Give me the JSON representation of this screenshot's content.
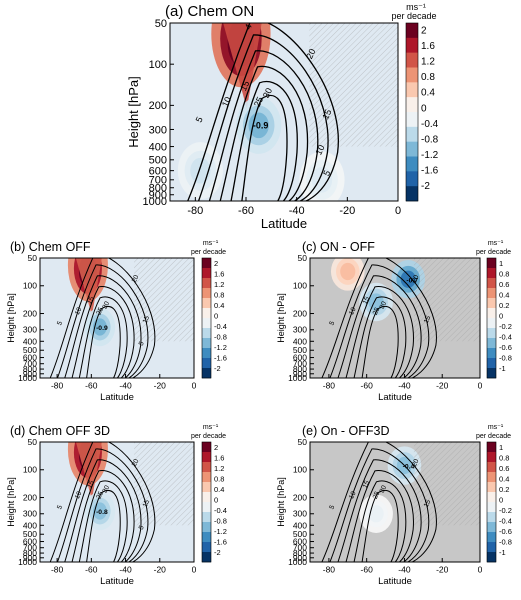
{
  "figure": {
    "colorbar_unit_line1": "ms⁻¹",
    "colorbar_unit_line2": "per decade"
  },
  "chart_data": [
    {
      "type": "heatmap",
      "id": "a",
      "title": "(a) Chem ON",
      "xlabel": "Latitude",
      "ylabel": "Height [hPa]",
      "x_ticks": [
        "-80",
        "-60",
        "-40",
        "-20",
        "0"
      ],
      "x_tick_values": [
        -80,
        -60,
        -40,
        -20,
        0
      ],
      "xlim": [
        -90,
        0
      ],
      "y_ticks": [
        "50",
        "100",
        "200",
        "300",
        "400",
        "500",
        "600",
        "700",
        "800",
        "900",
        "1000"
      ],
      "y_tick_values": [
        50,
        100,
        200,
        300,
        400,
        500,
        600,
        700,
        800,
        900,
        1000
      ],
      "ylim": [
        50,
        1000
      ],
      "y_scale": "log",
      "colorbar_ticks": [
        "2",
        "1.6",
        "1.2",
        "0.8",
        "0.4",
        "0",
        "-0.4",
        "-0.8",
        "-1.2",
        "-1.6",
        "-2"
      ],
      "colorbar_range": [
        -2,
        2
      ],
      "features": [
        {
          "lat": -62,
          "p": 60,
          "value": 2.4
        },
        {
          "lat": -55,
          "p": 280,
          "value": -0.9
        },
        {
          "lat": -78,
          "p": 600,
          "value": -0.4
        },
        {
          "lat": -30,
          "p": 700,
          "value": -0.3
        }
      ],
      "contour_labels": [
        "5",
        "10",
        "15",
        "20",
        "25",
        "30",
        "15",
        "10",
        "5",
        "-0.9",
        "4"
      ]
    },
    {
      "type": "heatmap",
      "id": "b",
      "title": "(b) Chem OFF",
      "xlabel": "Latitude",
      "ylabel": "Height [hPa]",
      "x_ticks": [
        "-80",
        "-60",
        "-40",
        "-20",
        "0"
      ],
      "x_tick_values": [
        -80,
        -60,
        -40,
        -20,
        0
      ],
      "xlim": [
        -90,
        0
      ],
      "y_ticks": [
        "50",
        "100",
        "200",
        "300",
        "400",
        "500",
        "600",
        "700",
        "800",
        "900",
        "1000"
      ],
      "y_tick_values": [
        50,
        100,
        200,
        300,
        400,
        500,
        600,
        700,
        800,
        900,
        1000
      ],
      "ylim": [
        50,
        1000
      ],
      "y_scale": "log",
      "colorbar_ticks": [
        "2",
        "1.6",
        "1.2",
        "0.8",
        "0.4",
        "0",
        "-0.4",
        "-0.8",
        "-1.2",
        "-1.6",
        "-2"
      ],
      "colorbar_range": [
        -2,
        2
      ],
      "features": [
        {
          "lat": -62,
          "p": 60,
          "value": 2.2
        },
        {
          "lat": -55,
          "p": 280,
          "value": -0.9
        }
      ],
      "contour_labels": [
        "5",
        "10",
        "15",
        "20",
        "25",
        "30",
        "15",
        "5",
        "-0.9"
      ]
    },
    {
      "type": "heatmap",
      "id": "c",
      "title": "(c) ON - OFF",
      "xlabel": "Latitude",
      "ylabel": "Height [hPa]",
      "x_ticks": [
        "-80",
        "-60",
        "-40",
        "-20",
        "0"
      ],
      "x_tick_values": [
        -80,
        -60,
        -40,
        -20,
        0
      ],
      "xlim": [
        -90,
        0
      ],
      "y_ticks": [
        "50",
        "100",
        "200",
        "300",
        "400",
        "500",
        "600",
        "700",
        "800",
        "900",
        "1000"
      ],
      "y_tick_values": [
        50,
        100,
        200,
        300,
        400,
        500,
        600,
        700,
        800,
        900,
        1000
      ],
      "ylim": [
        50,
        1000
      ],
      "y_scale": "log",
      "colorbar_ticks": [
        "1",
        "0.8",
        "0.6",
        "0.4",
        "0.2",
        "0",
        "-0.2",
        "-0.4",
        "-0.6",
        "-0.8",
        "-1"
      ],
      "colorbar_range": [
        -1,
        1
      ],
      "features": [
        {
          "lat": -38,
          "p": 85,
          "value": -0.7
        },
        {
          "lat": -55,
          "p": 150,
          "value": -0.4
        },
        {
          "lat": -70,
          "p": 70,
          "value": 0.3
        }
      ],
      "contour_labels": [
        "5",
        "10",
        "15",
        "20",
        "25",
        "30",
        "15",
        "-0.7"
      ]
    },
    {
      "type": "heatmap",
      "id": "d",
      "title": "(d) Chem OFF 3D",
      "xlabel": "Latitude",
      "ylabel": "Height [hPa]",
      "x_ticks": [
        "-80",
        "-60",
        "-40",
        "-20",
        "0"
      ],
      "x_tick_values": [
        -80,
        -60,
        -40,
        -20,
        0
      ],
      "xlim": [
        -90,
        0
      ],
      "y_ticks": [
        "50",
        "100",
        "200",
        "300",
        "400",
        "500",
        "600",
        "700",
        "800",
        "900",
        "1000"
      ],
      "y_tick_values": [
        50,
        100,
        200,
        300,
        400,
        500,
        600,
        700,
        800,
        900,
        1000
      ],
      "ylim": [
        50,
        1000
      ],
      "y_scale": "log",
      "colorbar_ticks": [
        "2",
        "1.6",
        "1.2",
        "0.8",
        "0.4",
        "0",
        "-0.4",
        "-0.8",
        "-1.2",
        "-1.6",
        "-2"
      ],
      "colorbar_range": [
        -2,
        2
      ],
      "features": [
        {
          "lat": -62,
          "p": 60,
          "value": 2.2
        },
        {
          "lat": -55,
          "p": 280,
          "value": -0.8
        }
      ],
      "contour_labels": [
        "5",
        "10",
        "15",
        "20",
        "25",
        "30",
        "15",
        "5",
        "-0.8"
      ]
    },
    {
      "type": "heatmap",
      "id": "e",
      "title": "(e) On - OFF3D",
      "xlabel": "Latitude",
      "ylabel": "Height [hPa]",
      "x_ticks": [
        "-80",
        "-60",
        "-40",
        "-20",
        "0"
      ],
      "x_tick_values": [
        -80,
        -60,
        -40,
        -20,
        0
      ],
      "xlim": [
        -90,
        0
      ],
      "y_ticks": [
        "50",
        "100",
        "200",
        "300",
        "400",
        "500",
        "600",
        "700",
        "800",
        "900",
        "1000"
      ],
      "y_tick_values": [
        50,
        100,
        200,
        300,
        400,
        500,
        600,
        700,
        800,
        900,
        1000
      ],
      "ylim": [
        50,
        1000
      ],
      "y_scale": "log",
      "colorbar_ticks": [
        "1",
        "0.8",
        "0.6",
        "0.4",
        "0.2",
        "0",
        "-0.2",
        "-0.4",
        "-0.6",
        "-0.8",
        "-1"
      ],
      "colorbar_range": [
        -1,
        1
      ],
      "features": [
        {
          "lat": -40,
          "p": 90,
          "value": -0.4
        },
        {
          "lat": -55,
          "p": 300,
          "value": -0.1
        }
      ],
      "contour_labels": [
        "5",
        "10",
        "15",
        "20",
        "25",
        "30",
        "15",
        "-0.4"
      ]
    }
  ]
}
